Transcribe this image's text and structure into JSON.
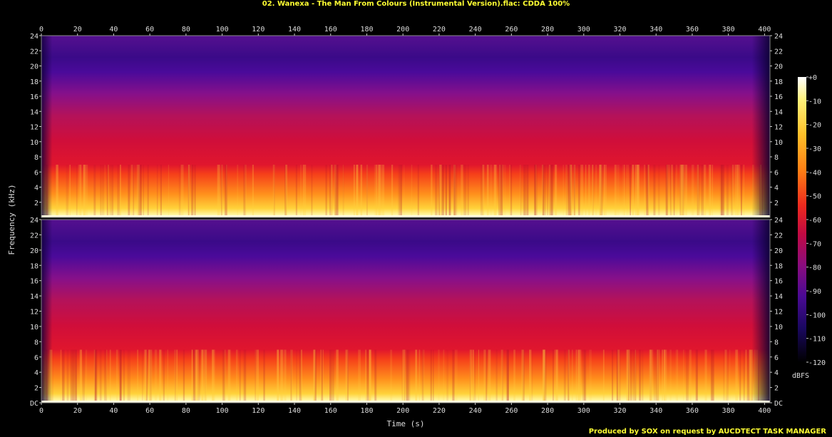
{
  "chart_data": {
    "type": "heatmap",
    "title": "02. Wanexa - The Man From Colours (Instrumental Version).flac: CDDA 100%",
    "xlabel": "Time (s)",
    "ylabel": "Frequency (kHz)",
    "xlim": [
      0,
      403
    ],
    "ylim": [
      0,
      24
    ],
    "x_ticks": [
      "0",
      "20",
      "40",
      "60",
      "80",
      "100",
      "120",
      "140",
      "160",
      "180",
      "200",
      "220",
      "240",
      "260",
      "280",
      "300",
      "320",
      "340",
      "360",
      "380",
      "400"
    ],
    "y_ticks_top": [
      "24",
      "22",
      "20",
      "18",
      "16",
      "14",
      "12",
      "10",
      "8",
      "6",
      "4",
      "2"
    ],
    "y_ticks_bottom": [
      "24",
      "22",
      "20",
      "18",
      "16",
      "14",
      "12",
      "10",
      "8",
      "6",
      "4",
      "2",
      "DC"
    ],
    "channels": 2,
    "colorbar": {
      "label": "dBFS",
      "range": [
        -120,
        0
      ],
      "ticks": [
        "+0",
        "-10",
        "-20",
        "-30",
        "-40",
        "-50",
        "-60",
        "-70",
        "-80",
        "-90",
        "-100",
        "-110",
        "-120"
      ]
    },
    "footer": "Produced by SOX on request by AUCDTECT TASK MANAGER"
  }
}
